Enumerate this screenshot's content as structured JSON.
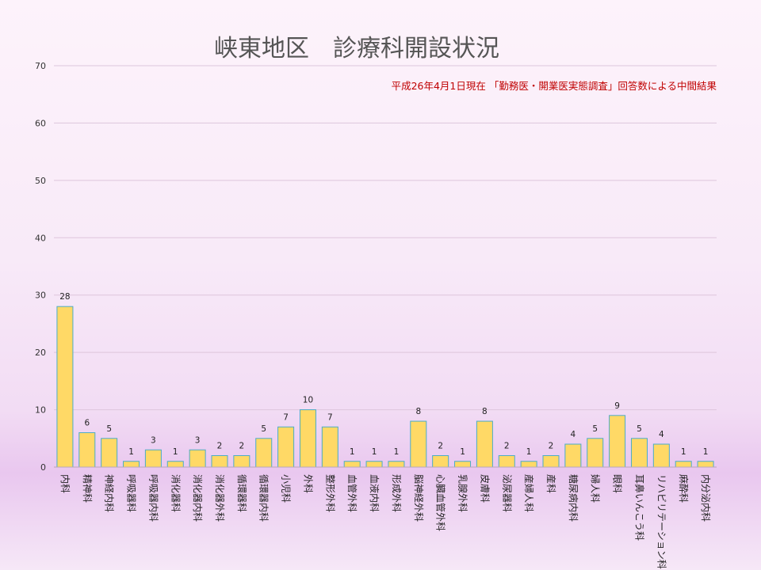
{
  "colors": {
    "bar_fill": "#ffd966",
    "bar_stroke": "#4bacc6",
    "subtitle": "#c00000",
    "grid": "#ddc6dc"
  },
  "chart_data": {
    "type": "bar",
    "title": "峡東地区　診療科開設状況",
    "subtitle": "平成26年4月1日現在 「勤務医・開業医実態調査」回答数による中間結果",
    "xlabel": "",
    "ylabel": "",
    "ylim": [
      0,
      70
    ],
    "yticks": [
      0,
      10,
      20,
      30,
      40,
      50,
      60,
      70
    ],
    "grid": true,
    "legend": "none",
    "categories": [
      "内科",
      "精神科",
      "神経内科",
      "呼吸器科",
      "呼吸器内科",
      "消化器科",
      "消化器内科",
      "消化器外科",
      "循環器科",
      "循環器内科",
      "小児科",
      "外科",
      "整形外科",
      "血管外科",
      "血液内科",
      "形成外科",
      "脳神経外科",
      "心臓血管外科",
      "乳腺外科",
      "皮膚科",
      "泌尿器科",
      "産婦人科",
      "産科",
      "糖尿病内科",
      "婦人科",
      "眼科",
      "耳鼻いんこう科",
      "リハビリテーション科",
      "麻酔科",
      "内分泌内科"
    ],
    "values": [
      28,
      6,
      5,
      1,
      3,
      1,
      3,
      2,
      2,
      5,
      7,
      10,
      7,
      1,
      1,
      1,
      8,
      2,
      1,
      8,
      2,
      1,
      2,
      4,
      5,
      9,
      5,
      4,
      1,
      1
    ]
  }
}
